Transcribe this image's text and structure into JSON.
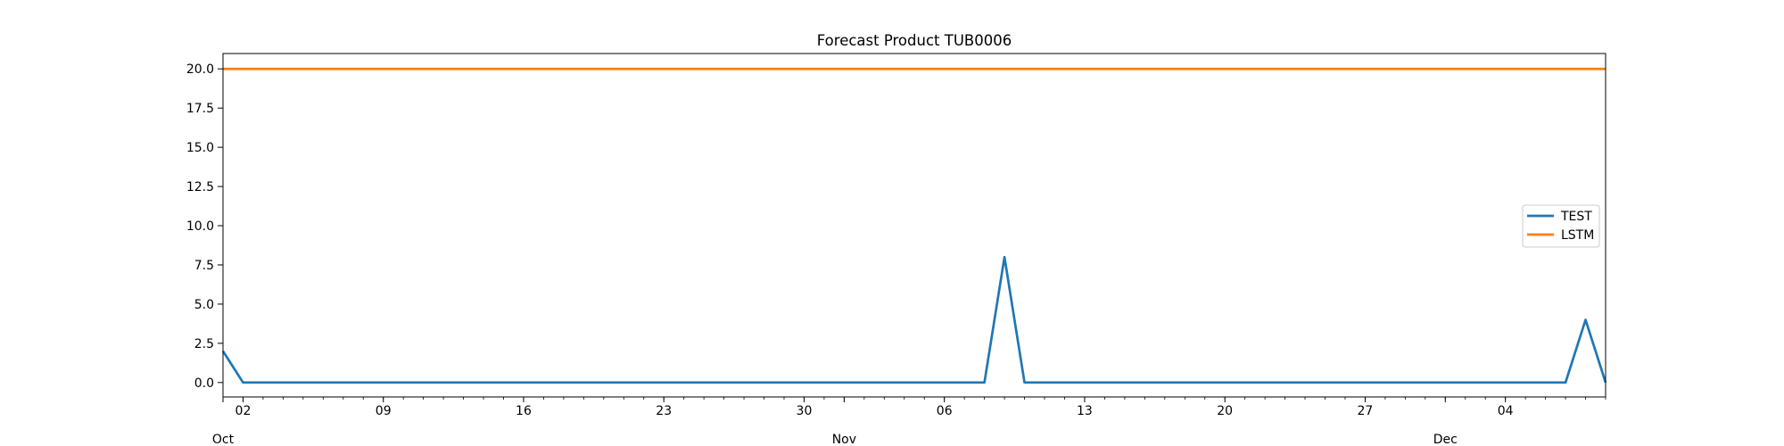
{
  "chart_data": {
    "type": "line",
    "title": "Forecast Product TUB0006",
    "xlabel": "",
    "ylabel": "",
    "x_range": [
      "2023-10-01",
      "2023-12-09"
    ],
    "ylim": [
      -0.92,
      20.98
    ],
    "y_ticks": [
      "0.0",
      "2.5",
      "5.0",
      "7.5",
      "10.0",
      "12.5",
      "15.0",
      "17.5",
      "20.0"
    ],
    "x_major_ticks": [
      {
        "date": "2023-10-02",
        "label": "02"
      },
      {
        "date": "2023-10-09",
        "label": "09"
      },
      {
        "date": "2023-10-16",
        "label": "16"
      },
      {
        "date": "2023-10-23",
        "label": "23"
      },
      {
        "date": "2023-10-30",
        "label": "30"
      },
      {
        "date": "2023-11-06",
        "label": "06"
      },
      {
        "date": "2023-11-13",
        "label": "13"
      },
      {
        "date": "2023-11-20",
        "label": "20"
      },
      {
        "date": "2023-11-27",
        "label": "27"
      },
      {
        "date": "2023-12-04",
        "label": "04"
      }
    ],
    "x_month_labels": [
      {
        "date": "2023-10-01",
        "label": "Oct"
      },
      {
        "date": "2023-11-01",
        "label": "Nov"
      },
      {
        "date": "2023-12-01",
        "label": "Dec"
      }
    ],
    "legend_position": "center-right",
    "grid": false,
    "series": [
      {
        "name": "TEST",
        "color": "#1f77b4",
        "points": [
          {
            "x": "2023-10-01",
            "y": 2
          },
          {
            "x": "2023-10-02",
            "y": 0
          },
          {
            "x": "2023-11-08",
            "y": 0
          },
          {
            "x": "2023-11-09",
            "y": 8
          },
          {
            "x": "2023-11-10",
            "y": 0
          },
          {
            "x": "2023-12-07",
            "y": 0
          },
          {
            "x": "2023-12-08",
            "y": 4
          },
          {
            "x": "2023-12-09",
            "y": 0
          }
        ]
      },
      {
        "name": "LSTM",
        "color": "#ff7f0e",
        "points": [
          {
            "x": "2023-10-01",
            "y": 20
          },
          {
            "x": "2023-12-09",
            "y": 20
          }
        ]
      }
    ]
  }
}
